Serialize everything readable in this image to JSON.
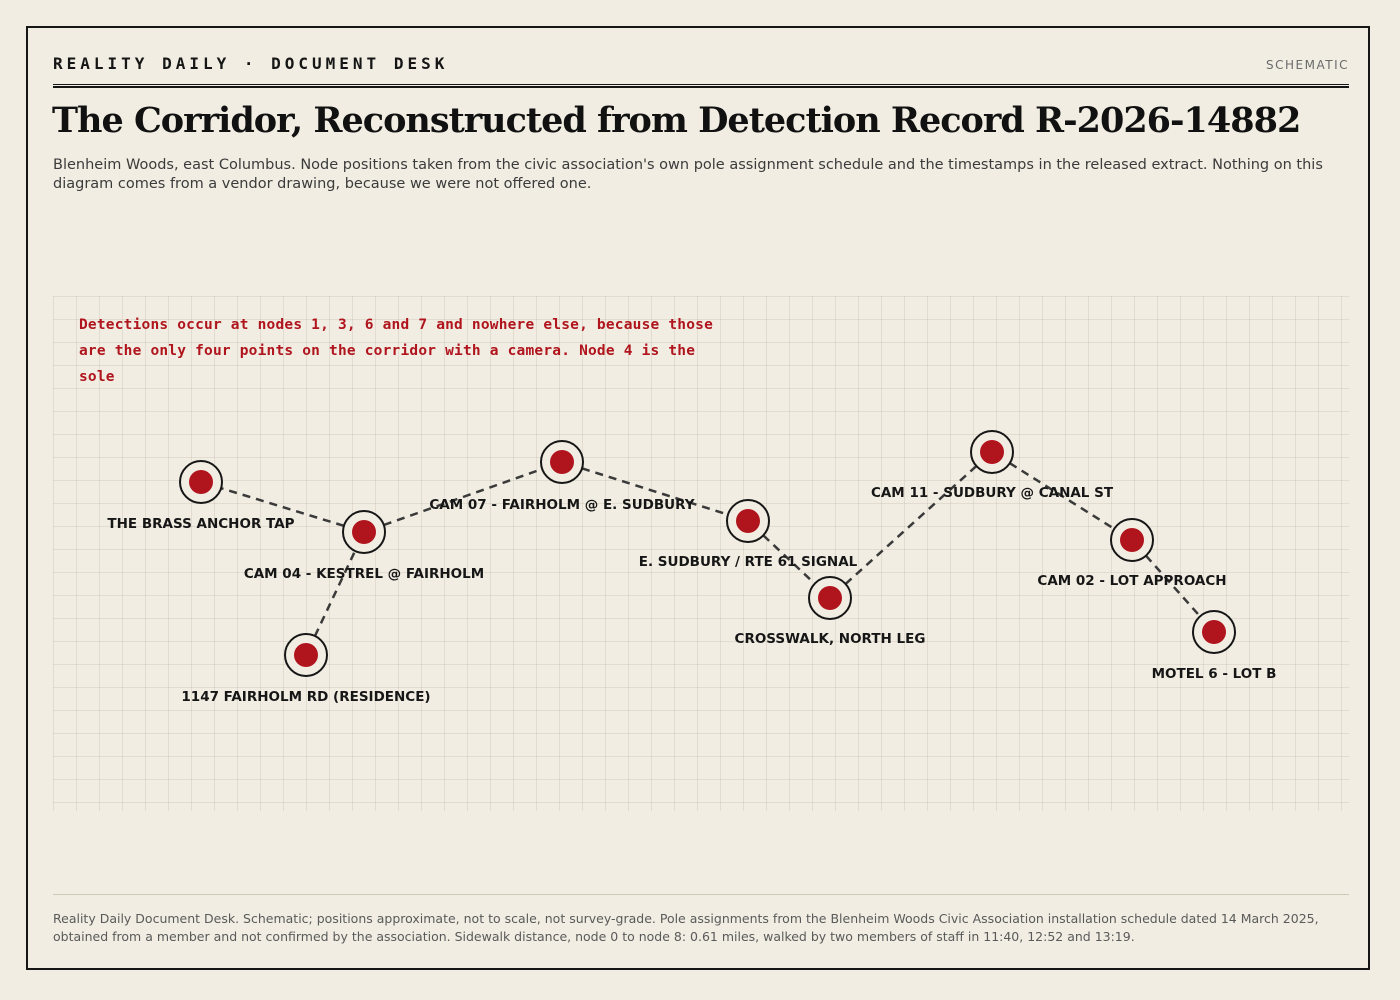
{
  "masthead": "REALITY DAILY · DOCUMENT DESK",
  "tag": "SCHEMATIC",
  "title": "The Corridor, Reconstructed from Detection Record R-2026-14882",
  "subtitle": "Blenheim Woods, east Columbus. Node positions taken from the civic association's own pole assignment schedule and the timestamps in the released extract. Nothing on this diagram comes from a vendor drawing, because we were not offered one.",
  "annotation": "Detections occur at nodes 1, 3, 6 and 7 and nowhere else, because those are the only four points on the corridor with a camera. Node 4 is the sole",
  "colors": {
    "node_fill": "#b0141d",
    "ring": "#161616",
    "path": "#3a3a3a",
    "background": "#f1ede2"
  },
  "nodes": [
    {
      "label": "1147 FAIRHOLM RD (RESIDENCE)"
    },
    {
      "label": "CAM 04 - KESTREL @ FAIRHOLM"
    },
    {
      "label": "THE BRASS ANCHOR TAP"
    },
    {
      "label": "CAM 07 - FAIRHOLM @ E. SUDBURY"
    },
    {
      "label": "E. SUDBURY / RTE 61 SIGNAL"
    },
    {
      "label": "CROSSWALK, NORTH LEG"
    },
    {
      "label": "CAM 11 - SUDBURY @ CANAL ST"
    },
    {
      "label": "CAM 02 - LOT APPROACH"
    },
    {
      "label": "MOTEL 6 - LOT B"
    }
  ],
  "footer": "Reality Daily Document Desk. Schematic; positions approximate, not to scale, not survey-grade. Pole assignments from the Blenheim Woods Civic Association installation schedule dated 14 March 2025, obtained from a member and not confirmed by the association. Sidewalk distance, node 0 to node 8: 0.61 miles, walked by two members of staff in 11:40, 12:52 and 13:19."
}
